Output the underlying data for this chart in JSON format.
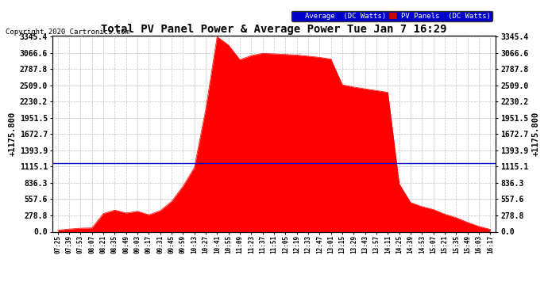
{
  "title": "Total PV Panel Power & Average Power Tue Jan 7 16:29",
  "copyright": "Copyright 2020 Cartronics.com",
  "ylabel_left": "+1175.800",
  "ylabel_right": "+1175.800",
  "average_value": 1175.8,
  "ymax": 3345.4,
  "yticks": [
    0.0,
    278.8,
    557.6,
    836.3,
    1115.1,
    1393.9,
    1672.7,
    1951.5,
    2230.2,
    2509.0,
    2787.8,
    3066.6,
    3345.4
  ],
  "background_color": "#ffffff",
  "fill_color": "#ff0000",
  "line_color": "#0000cc",
  "grid_color": "#bbbbbb",
  "x_labels": [
    "07:25",
    "07:39",
    "07:53",
    "08:07",
    "08:21",
    "08:35",
    "08:49",
    "09:03",
    "09:17",
    "09:31",
    "09:45",
    "09:59",
    "10:13",
    "10:27",
    "10:41",
    "10:55",
    "11:09",
    "11:23",
    "11:37",
    "11:51",
    "12:05",
    "12:19",
    "12:33",
    "12:47",
    "13:01",
    "13:15",
    "13:29",
    "13:43",
    "13:57",
    "14:11",
    "14:25",
    "14:39",
    "14:53",
    "15:07",
    "15:21",
    "15:35",
    "15:49",
    "16:03",
    "16:17"
  ],
  "pv_values": [
    25,
    45,
    60,
    65,
    310,
    370,
    320,
    350,
    290,
    360,
    520,
    780,
    1100,
    2100,
    3345,
    3200,
    2950,
    3020,
    3060,
    3050,
    3040,
    3030,
    3010,
    2990,
    2960,
    2520,
    2480,
    2450,
    2420,
    2390,
    820,
    500,
    430,
    380,
    300,
    240,
    160,
    90,
    40
  ],
  "legend_avg_color": "#0000cc",
  "legend_pv_color": "#cc0000",
  "legend_avg_text": "Average  (DC Watts)",
  "legend_pv_text": "PV Panels  (DC Watts)"
}
